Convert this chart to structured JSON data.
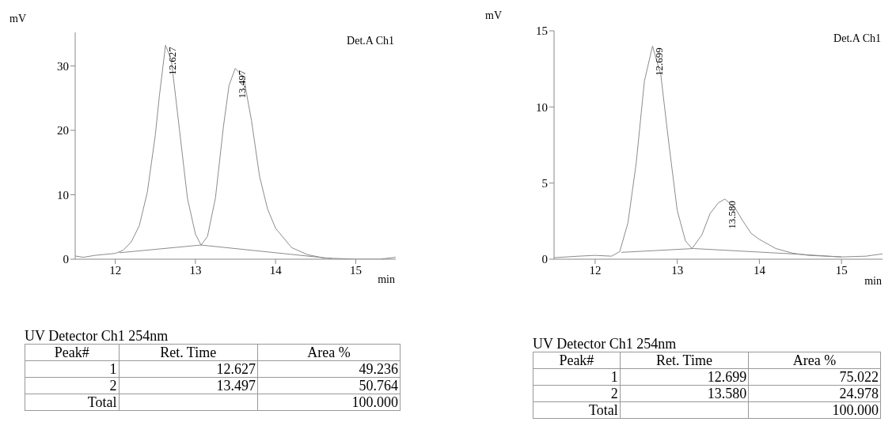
{
  "chart_data": [
    {
      "type": "line",
      "xlabel": "min",
      "ylabel": "mV",
      "xlim": [
        11.5,
        15.5
      ],
      "xticks": [
        12,
        13,
        14,
        15
      ],
      "ylim": [
        0,
        35.2
      ],
      "yticks": [
        0,
        10,
        20,
        30
      ],
      "marker": "none",
      "line_style": "solid",
      "series": [
        {
          "color": "#8c8c8c",
          "x": [
            11.5,
            11.6,
            11.75,
            12.0,
            12.1,
            12.2,
            12.3,
            12.4,
            12.5,
            12.55,
            12.627,
            12.7,
            12.8,
            12.9,
            13.0,
            13.07,
            13.15,
            13.25,
            13.35,
            13.42,
            13.497,
            13.6,
            13.7,
            13.8,
            13.9,
            14.0,
            14.2,
            14.4,
            14.6,
            14.8,
            15.0,
            15.3,
            15.5
          ],
          "values": [
            0.5,
            0.3,
            0.6,
            0.9,
            1.4,
            2.7,
            5.2,
            10.4,
            19.3,
            25.3,
            33.2,
            30.9,
            20.2,
            9.5,
            3.9,
            2.2,
            3.5,
            9.5,
            20.6,
            27,
            29.6,
            28.3,
            21.5,
            12.9,
            7.8,
            4.8,
            1.8,
            0.7,
            0.2,
            0.1,
            0,
            0,
            0.3
          ]
        },
        {
          "color": "#8c8c8c",
          "x": [
            12.05,
            13.07,
            14.7
          ],
          "values": [
            1.0,
            2.2,
            0.1
          ]
        }
      ],
      "annotations": [
        {
          "text": "12.627",
          "x": 12.627,
          "y": 33.2
        },
        {
          "text": "13.497",
          "x": 13.497,
          "y": 29.6
        },
        "Det.A Ch1",
        "UV Detector Ch1 254nm",
        "Peak#",
        "Ret. Time",
        "Area %",
        "1",
        "12.627",
        "49.236",
        "2",
        "13.497",
        "50.764",
        "Total",
        "100.000"
      ]
    },
    {
      "type": "line",
      "xlabel": "min",
      "ylabel": "mV",
      "xlim": [
        11.5,
        15.5
      ],
      "xticks": [
        12,
        13,
        14,
        15
      ],
      "ylim": [
        0,
        15
      ],
      "yticks": [
        0,
        5,
        10,
        15
      ],
      "marker": "none",
      "line_style": "solid",
      "series": [
        {
          "color": "#8c8c8c",
          "x": [
            11.5,
            11.8,
            12.0,
            12.2,
            12.3,
            12.4,
            12.5,
            12.6,
            12.699,
            12.8,
            12.9,
            13.0,
            13.1,
            13.18,
            13.3,
            13.4,
            13.5,
            13.58,
            13.7,
            13.8,
            13.9,
            14.0,
            14.2,
            14.4,
            14.6,
            15.0,
            15.3,
            15.5
          ],
          "values": [
            0.1,
            0.2,
            0.25,
            0.2,
            0.5,
            2.4,
            6.3,
            11.7,
            14.0,
            12.1,
            7.5,
            3.2,
            1.2,
            0.7,
            1.6,
            3.0,
            3.7,
            3.95,
            3.4,
            2.5,
            1.7,
            1.3,
            0.7,
            0.4,
            0.25,
            0.15,
            0.2,
            0.35
          ]
        },
        {
          "color": "#8c8c8c",
          "x": [
            12.32,
            13.2,
            14.4,
            15.0
          ],
          "values": [
            0.45,
            0.7,
            0.35,
            0.15
          ]
        }
      ],
      "annotations": [
        {
          "text": "12.699",
          "x": 12.699,
          "y": 14.0
        },
        {
          "text": "13.580",
          "x": 13.58,
          "y": 3.95
        },
        "Det.A Ch1",
        "UV Detector Ch1 254nm",
        "Peak#",
        "Ret. Time",
        "Area %",
        "1",
        "12.699",
        "75.022",
        "2",
        "13.580",
        "24.978",
        "Total",
        "100.000"
      ]
    }
  ]
}
